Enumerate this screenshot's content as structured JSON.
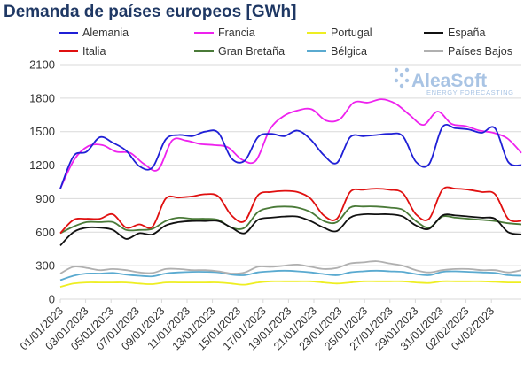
{
  "page": {
    "title": "Demanda de países europeos [GWh]"
  },
  "logo": {
    "name": "AleaSoft",
    "tagline": "ENERGY FORECASTING",
    "color": "#a9c4e4"
  },
  "chart_data": {
    "type": "line",
    "title": "Demanda de países europeos [GWh]",
    "xlabel": "",
    "ylabel": "",
    "ylim": [
      0,
      2100
    ],
    "yticks": [
      0,
      300,
      600,
      900,
      1200,
      1500,
      1800,
      2100
    ],
    "grid": true,
    "legend_position": "top",
    "x_tick_labels": [
      "01/01/2023",
      "03/01/2023",
      "05/01/2023",
      "07/01/2023",
      "09/01/2023",
      "11/01/2023",
      "13/01/2023",
      "15/01/2023",
      "17/01/2023",
      "19/01/2023",
      "21/01/2023",
      "23/01/2023",
      "25/01/2023",
      "27/01/2023",
      "29/01/2023",
      "31/01/2023",
      "02/02/2023",
      "04/02/2023"
    ],
    "x_days": 38,
    "series": [
      {
        "name": "Alemania",
        "color": "#1f1fd6",
        "values": [
          990,
          1280,
          1320,
          1450,
          1400,
          1330,
          1190,
          1180,
          1430,
          1470,
          1460,
          1500,
          1490,
          1260,
          1240,
          1450,
          1480,
          1460,
          1510,
          1430,
          1290,
          1220,
          1450,
          1460,
          1470,
          1480,
          1460,
          1230,
          1210,
          1540,
          1530,
          1520,
          1490,
          1530,
          1230,
          1200
        ]
      },
      {
        "name": "Francia",
        "color": "#ee22ee",
        "values": [
          990,
          1250,
          1370,
          1380,
          1320,
          1310,
          1210,
          1160,
          1420,
          1420,
          1390,
          1380,
          1360,
          1250,
          1240,
          1520,
          1640,
          1690,
          1700,
          1600,
          1610,
          1760,
          1760,
          1790,
          1750,
          1650,
          1560,
          1680,
          1570,
          1550,
          1510,
          1490,
          1440,
          1310
        ]
      },
      {
        "name": "Portugal",
        "color": "#eeee22",
        "values": [
          110,
          140,
          150,
          150,
          150,
          150,
          140,
          135,
          150,
          150,
          150,
          150,
          150,
          140,
          130,
          150,
          160,
          160,
          160,
          160,
          150,
          140,
          150,
          160,
          160,
          160,
          160,
          150,
          145,
          160,
          160,
          160,
          160,
          155,
          150,
          150
        ]
      },
      {
        "name": "España",
        "color": "#111111",
        "values": [
          480,
          600,
          640,
          640,
          620,
          540,
          590,
          580,
          660,
          690,
          700,
          700,
          700,
          640,
          590,
          710,
          730,
          740,
          740,
          700,
          640,
          610,
          730,
          760,
          760,
          760,
          740,
          660,
          630,
          750,
          750,
          740,
          730,
          720,
          600,
          580
        ]
      },
      {
        "name": "Italia",
        "color": "#e01010",
        "values": [
          590,
          710,
          720,
          720,
          760,
          640,
          670,
          650,
          900,
          910,
          920,
          940,
          920,
          750,
          700,
          930,
          960,
          970,
          960,
          900,
          750,
          720,
          960,
          980,
          990,
          980,
          950,
          760,
          720,
          980,
          990,
          980,
          960,
          940,
          720,
          700
        ]
      },
      {
        "name": "Gran Bretaña",
        "color": "#4a7a38",
        "values": [
          590,
          650,
          690,
          690,
          690,
          620,
          620,
          630,
          700,
          730,
          720,
          720,
          710,
          640,
          640,
          780,
          820,
          830,
          820,
          780,
          700,
          690,
          820,
          830,
          830,
          820,
          800,
          700,
          640,
          740,
          730,
          720,
          710,
          700,
          680,
          670
        ]
      },
      {
        "name": "Bélgica",
        "color": "#5aaad0",
        "values": [
          170,
          210,
          230,
          230,
          235,
          220,
          210,
          205,
          230,
          240,
          245,
          245,
          240,
          220,
          215,
          240,
          250,
          255,
          250,
          240,
          225,
          215,
          240,
          250,
          255,
          250,
          245,
          225,
          215,
          245,
          250,
          245,
          240,
          235,
          215,
          210
        ]
      },
      {
        "name": "Países Bajos",
        "color": "#b0b0b0",
        "values": [
          230,
          290,
          280,
          260,
          270,
          260,
          240,
          235,
          270,
          270,
          260,
          260,
          250,
          230,
          240,
          290,
          290,
          300,
          310,
          290,
          270,
          280,
          320,
          330,
          340,
          320,
          300,
          260,
          240,
          260,
          270,
          270,
          260,
          260,
          240,
          260
        ]
      }
    ]
  }
}
